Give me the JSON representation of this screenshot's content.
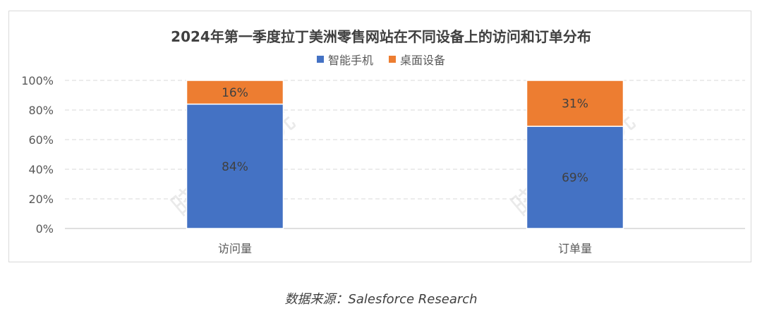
{
  "chart_data": {
    "type": "bar",
    "stacked": true,
    "title": "2024年第一季度拉丁美洲零售网站在不同设备上的访问和订单分布",
    "categories": [
      "访问量",
      "订单量"
    ],
    "series": [
      {
        "name": "智能手机",
        "values": [
          84,
          69
        ],
        "labels": [
          "84%",
          "69%"
        ],
        "color": "#4472c4"
      },
      {
        "name": "桌面设备",
        "values": [
          16,
          31
        ],
        "labels": [
          "16%",
          "31%"
        ],
        "color": "#ed7d31"
      }
    ],
    "y_ticks": [
      "0%",
      "20%",
      "40%",
      "60%",
      "80%",
      "100%"
    ],
    "ylim": [
      0,
      100
    ],
    "grid": true,
    "legend_position": "top"
  },
  "watermark_text": "晓生研究院",
  "source_text": "数据来源：Salesforce Research"
}
